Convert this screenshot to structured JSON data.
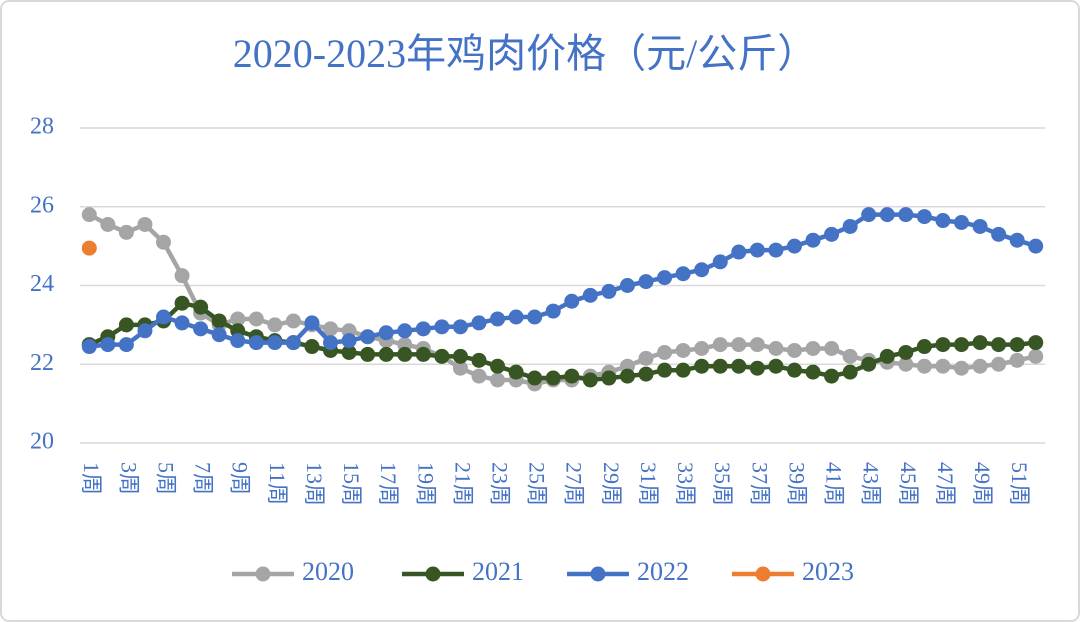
{
  "chart_data": {
    "type": "line",
    "title": "2020-2023年鸡肉价格（元/公斤）",
    "categories": [
      "1周",
      null,
      "3周",
      null,
      "5周",
      null,
      "7周",
      null,
      "9周",
      null,
      "11周",
      null,
      "13周",
      null,
      "15周",
      null,
      "17周",
      null,
      "19周",
      null,
      "21周",
      null,
      "23周",
      null,
      "25周",
      null,
      "27周",
      null,
      "29周",
      null,
      "31周",
      null,
      "33周",
      null,
      "35周",
      null,
      "37周",
      null,
      "39周",
      null,
      "41周",
      null,
      "43周",
      null,
      "45周",
      null,
      "47周",
      null,
      "49周",
      null,
      "51周",
      null
    ],
    "series": [
      {
        "name": "2020",
        "color": "#a5a5a5",
        "values": [
          25.8,
          25.55,
          25.35,
          25.55,
          25.1,
          24.25,
          23.3,
          23.0,
          23.15,
          23.15,
          23.0,
          23.1,
          23.0,
          22.9,
          22.85,
          22.7,
          22.6,
          22.5,
          22.4,
          22.2,
          21.9,
          21.7,
          21.6,
          21.6,
          21.5,
          21.6,
          21.6,
          21.7,
          21.8,
          21.95,
          22.15,
          22.3,
          22.35,
          22.4,
          22.5,
          22.5,
          22.5,
          22.4,
          22.35,
          22.4,
          22.4,
          22.2,
          22.1,
          22.05,
          22.0,
          21.95,
          21.95,
          21.9,
          21.95,
          22.0,
          22.1,
          22.2
        ]
      },
      {
        "name": "2021",
        "color": "#375623",
        "values": [
          22.5,
          22.7,
          23.0,
          23.0,
          23.1,
          23.55,
          23.45,
          23.1,
          22.85,
          22.7,
          22.6,
          22.55,
          22.45,
          22.35,
          22.3,
          22.25,
          22.25,
          22.25,
          22.25,
          22.2,
          22.2,
          22.1,
          21.95,
          21.8,
          21.65,
          21.65,
          21.7,
          21.6,
          21.65,
          21.7,
          21.75,
          21.85,
          21.85,
          21.95,
          21.95,
          21.95,
          21.9,
          21.95,
          21.85,
          21.8,
          21.7,
          21.8,
          22.0,
          22.2,
          22.3,
          22.45,
          22.5,
          22.5,
          22.55,
          22.5,
          22.5,
          22.55
        ]
      },
      {
        "name": "2022",
        "color": "#4472c4",
        "values": [
          22.45,
          22.5,
          22.5,
          22.85,
          23.2,
          23.05,
          22.9,
          22.75,
          22.6,
          22.55,
          22.55,
          22.55,
          23.05,
          22.55,
          22.6,
          22.7,
          22.8,
          22.85,
          22.9,
          22.95,
          22.95,
          23.05,
          23.15,
          23.2,
          23.2,
          23.35,
          23.6,
          23.75,
          23.85,
          24.0,
          24.1,
          24.2,
          24.3,
          24.4,
          24.6,
          24.85,
          24.9,
          24.9,
          25.0,
          25.15,
          25.3,
          25.5,
          25.8,
          25.8,
          25.8,
          25.75,
          25.65,
          25.6,
          25.5,
          25.3,
          25.15,
          25.0
        ]
      },
      {
        "name": "2023",
        "color": "#ed7d31",
        "values": [
          24.95,
          null,
          null,
          null,
          null,
          null,
          null,
          null,
          null,
          null,
          null,
          null,
          null,
          null,
          null,
          null,
          null,
          null,
          null,
          null,
          null,
          null,
          null,
          null,
          null,
          null,
          null,
          null,
          null,
          null,
          null,
          null,
          null,
          null,
          null,
          null,
          null,
          null,
          null,
          null,
          null,
          null,
          null,
          null,
          null,
          null,
          null,
          null,
          null,
          null,
          null,
          null
        ]
      }
    ],
    "ylim": [
      20,
      28
    ],
    "yticks": [
      20,
      22,
      24,
      26,
      28
    ],
    "grid": true,
    "legend": "bottom"
  }
}
